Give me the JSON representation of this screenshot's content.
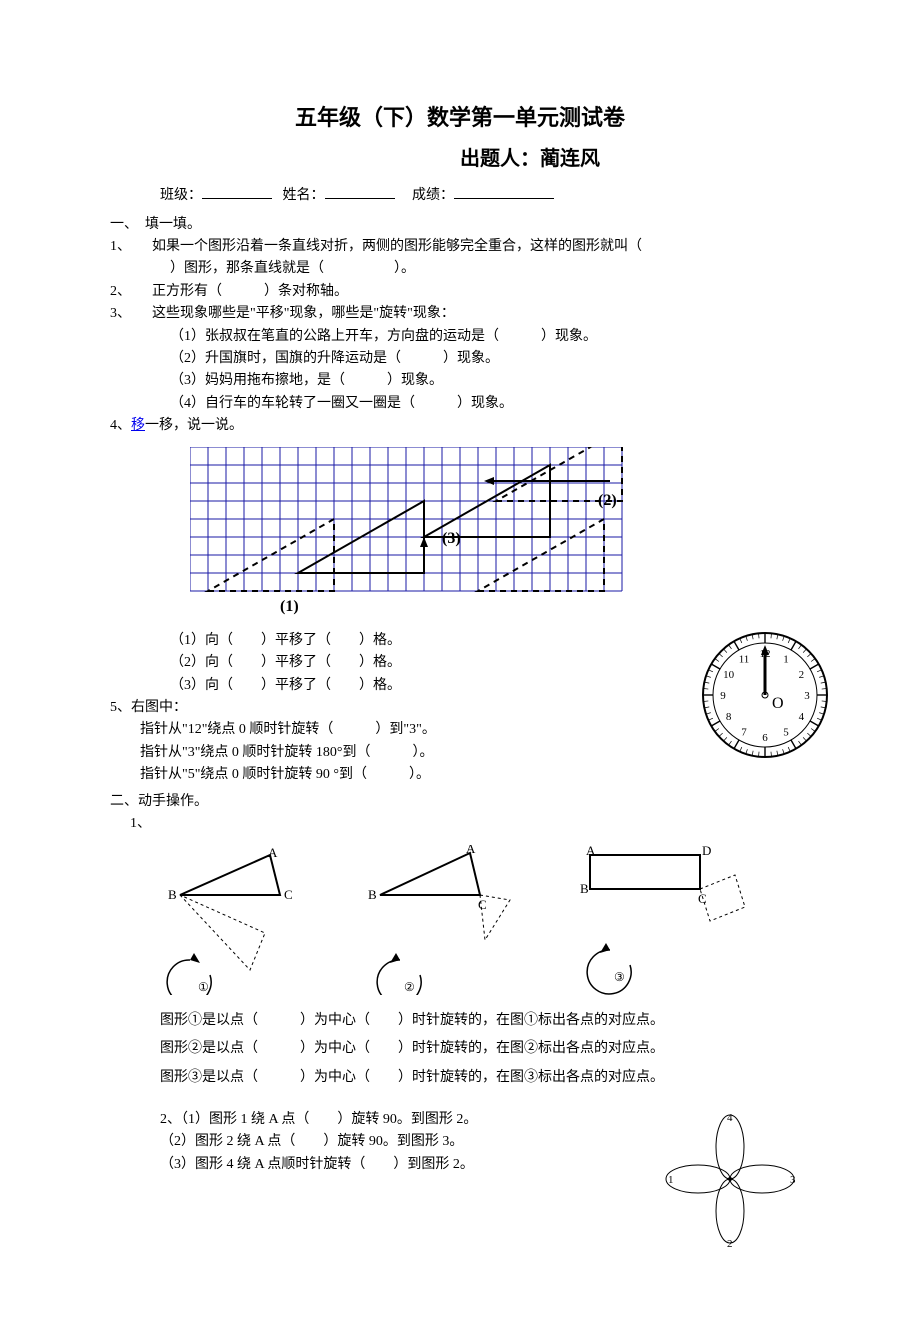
{
  "title": "五年级（下）数学第一单元测试卷",
  "author": "出题人：蔺连风",
  "info": {
    "class_label": "班级：",
    "name_label": "姓名：",
    "score_label": "成绩："
  },
  "s1": {
    "heading": "一、　填一填。",
    "q1_a": "1、　　如果一个图形沿着一条直线对折，两侧的图形能够完全重合，这样的图形就叫（",
    "q1_b": "）图形，那条直线就是（　　　　　）。",
    "q2": "2、　　正方形有（　　　）条对称轴。",
    "q3": "3、　　这些现象哪些是\"平移\"现象，哪些是\"旋转\"现象：",
    "q3_1": "（1）张叔叔在笔直的公路上开车，方向盘的运动是（　　　）现象。",
    "q3_2": "（2）升国旗时，国旗的升降运动是（　　　）现象。",
    "q3_3": "（3）妈妈用拖布擦地，是（　　　）现象。",
    "q3_4": "（4）自行车的车轮转了一圈又一圈是（　　　）现象。",
    "q4_a": "4、",
    "q4_link": "移",
    "q4_b": "一移，说一说。",
    "q4_1": "（1）向（　　）平移了（　　）格。",
    "q4_2": "（2）向（　　）平移了（　　）格。",
    "q4_3": "（3）向（　　）平移了（　　）格。",
    "q5": "5、右图中：",
    "q5_1": "指针从\"12\"绕点 0 顺时针旋转（　　　）到\"3\"。",
    "q5_2": "指针从\"3\"绕点 0 顺时针旋转 180°到（　　　）。",
    "q5_3": "指针从\"5\"绕点 0 顺时针旋转 90 °到（　　　）。"
  },
  "s2": {
    "heading": "二、动手操作。",
    "q1": "1、",
    "labels": {
      "a": "A",
      "b": "B",
      "c": "C",
      "d": "D",
      "n1": "①",
      "n2": "②",
      "n3": "③"
    },
    "op1": "图形①是以点（　　　）为中心（　　）时针旋转的，在图①标出各点的对应点。",
    "op2": "图形②是以点（　　　）为中心（　　）时针旋转的，在图②标出各点的对应点。",
    "op3": "图形③是以点（　　　）为中心（　　）时针旋转的，在图③标出各点的对应点。",
    "q2_1": "2、（1）图形 1 绕 A 点（　　）旋转 90。到图形 2。",
    "q2_2": "（2）图形 2 绕 A 点（　　）旋转 90。到图形 3。",
    "q2_3": "（3）图形 4 绕 A 点顺时针旋转（　　）到图形 2。",
    "petals": {
      "n1": "1",
      "n2": "2",
      "n3": "3",
      "n4": "4"
    }
  },
  "grid_figure": {
    "cols": 24,
    "rows": 8,
    "cell": 18,
    "stroke": "#1a1aa6",
    "stroke_w": 1,
    "tri_solid": "#000000",
    "tri_dash": "#000000",
    "labels": {
      "l1": "(1)",
      "l2": "(2)",
      "l3": "(3)"
    }
  },
  "clock": {
    "r": 62,
    "stroke": "#000",
    "numbers": [
      "12",
      "1",
      "2",
      "3",
      "4",
      "5",
      "6",
      "7",
      "8",
      "9",
      "10",
      "11"
    ],
    "center_label": "O"
  },
  "petal": {
    "r": 30,
    "stroke": "#000"
  }
}
